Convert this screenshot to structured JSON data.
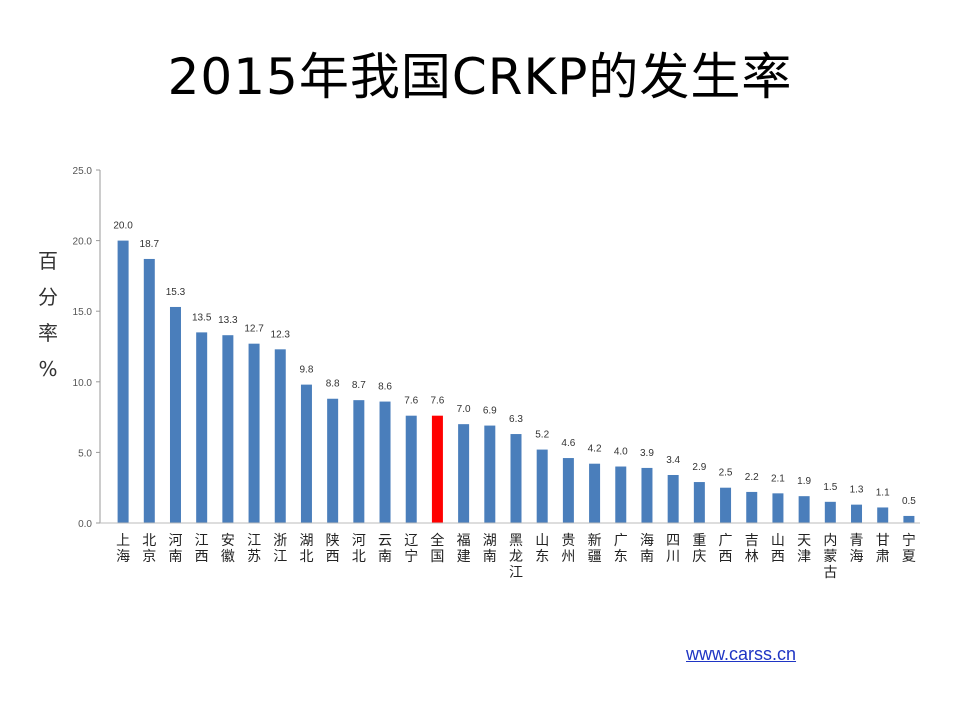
{
  "slide": {
    "title": "2015年我国CRKP的发生率",
    "source_link": "www.carss.cn"
  },
  "chart_data": {
    "type": "bar",
    "ylabel": "百分率%",
    "ylim": [
      0,
      25
    ],
    "yticks": [
      "0.0",
      "5.0",
      "10.0",
      "15.0",
      "20.0",
      "25.0"
    ],
    "grid": false,
    "categories": [
      "上海",
      "北京",
      "河南",
      "江西",
      "安徽",
      "江苏",
      "浙江",
      "湖北",
      "陕西",
      "河北",
      "云南",
      "辽宁",
      "全国",
      "福建",
      "湖南",
      "黑龙江",
      "山东",
      "贵州",
      "新疆",
      "广东",
      "海南",
      "四川",
      "重庆",
      "广西",
      "吉林",
      "山西",
      "天津",
      "内蒙古",
      "青海",
      "甘肃",
      "宁夏"
    ],
    "values": [
      20.0,
      18.7,
      15.3,
      13.5,
      13.3,
      12.7,
      12.3,
      9.8,
      8.8,
      8.7,
      8.6,
      7.6,
      7.6,
      7.0,
      6.9,
      6.3,
      5.2,
      4.6,
      4.2,
      4.0,
      3.9,
      3.4,
      2.9,
      2.5,
      2.2,
      2.1,
      1.9,
      1.5,
      1.3,
      1.1,
      0.5
    ],
    "value_labels": [
      "20.0",
      "18.7",
      "15.3",
      "13.5",
      "13.3",
      "12.7",
      "12.3",
      "9.8",
      "8.8",
      "8.7",
      "8.6",
      "7.6",
      "7.6",
      "7.0",
      "6.9",
      "6.3",
      "5.2",
      "4.6",
      "4.2",
      "4.0",
      "3.9",
      "3.4",
      "2.9",
      "2.5",
      "2.2",
      "2.1",
      "1.9",
      "1.5",
      "1.3",
      "1.1",
      "0.5"
    ],
    "bar_color": "#4a7ebb",
    "highlight_category": "全国",
    "highlight_color": "#ff0000"
  }
}
